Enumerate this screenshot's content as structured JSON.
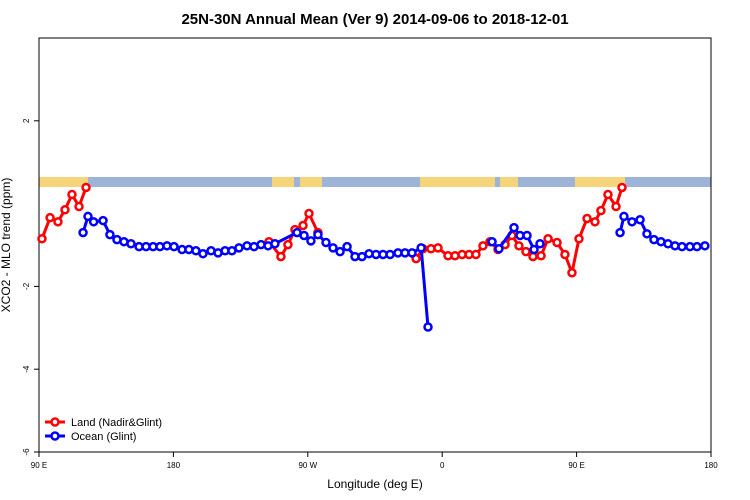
{
  "chart_data": {
    "type": "line",
    "title": "25N-30N Annual Mean (Ver 9)   2014-09-06 to 2018-12-01",
    "x_label": "Longitude (deg E)",
    "y_label": "XCO2 - MLO trend (ppm)",
    "xlim": [
      90,
      540
    ],
    "ylim": [
      -6,
      4
    ],
    "xticks": [
      {
        "value": 90,
        "label": "90 E"
      },
      180,
      {
        "value": 270,
        "label": "90 W"
      },
      {
        "value": 360,
        "label": "0"
      },
      {
        "value": 450,
        "label": "90 E"
      },
      {
        "value": 540,
        "label": "180"
      }
    ],
    "yticks": [
      -6,
      -4,
      -2,
      2
    ],
    "legend": "bottom-left",
    "series": [
      {
        "name": "Land (Nadir&Glint)",
        "color": "#ff0000",
        "x": [
          92,
          97.4,
          102.7,
          107.4,
          112.1,
          116.8,
          121.5,
          null,
          244,
          252,
          256.7,
          261.4,
          266.8,
          270.8,
          276.8,
          null,
          342.5,
          347.1,
          352.5,
          357.2,
          363.9,
          368.6,
          373.3,
          378,
          382.6,
          387.3,
          392,
          397.4,
          402.1,
          406.7,
          411.4,
          416.1,
          420.8,
          426.2,
          430.9,
          436.9,
          442.2,
          446.9,
          451.6,
          457,
          462.3,
          466.3,
          471,
          476.4,
          480.4
        ],
        "values": [
          -0.85,
          -0.34,
          -0.44,
          -0.15,
          0.22,
          -0.07,
          0.39,
          null,
          -0.92,
          -1.28,
          -0.99,
          -0.63,
          -0.53,
          -0.24,
          -0.7,
          null,
          -1.33,
          -1.09,
          -1.09,
          -1.07,
          -1.26,
          -1.26,
          -1.23,
          -1.23,
          -1.23,
          -1.02,
          -0.92,
          -1.11,
          -0.99,
          -0.77,
          -1.02,
          -1.16,
          -1.28,
          -1.26,
          -0.85,
          -0.94,
          -1.23,
          -1.67,
          -0.85,
          -0.36,
          -0.44,
          -0.17,
          0.22,
          -0.07,
          0.39
        ]
      },
      {
        "name": "Ocean (Glint)",
        "color": "#0000ff",
        "x": [
          119.5,
          122.8,
          126.6,
          132.9,
          137.5,
          142.2,
          146.9,
          151.6,
          157,
          161.7,
          166.4,
          171,
          175.7,
          180.4,
          185.8,
          190.4,
          195.1,
          199.8,
          205.2,
          209.9,
          214.6,
          219.2,
          223.9,
          229.3,
          234,
          238.7,
          243.4,
          248,
          262.8,
          267.5,
          272.1,
          276.8,
          282.2,
          286.9,
          291.6,
          296.3,
          301.6,
          306.3,
          311,
          315.7,
          320.4,
          325.1,
          330.4,
          335.1,
          339.8,
          345.9,
          350.5,
          null,
          393.4,
          398,
          408.1,
          412.1,
          416.8,
          421.5,
          425.5,
          null,
          479.1,
          481.7,
          487.1,
          492.5,
          497.1,
          501.8,
          506.5,
          511.2,
          515.9,
          520.6,
          525.9,
          530.6,
          535.9
        ],
        "values": [
          -0.7,
          -0.31,
          -0.44,
          -0.41,
          -0.75,
          -0.87,
          -0.92,
          -0.97,
          -1.04,
          -1.04,
          -1.04,
          -1.04,
          -1.02,
          -1.04,
          -1.11,
          -1.11,
          -1.14,
          -1.21,
          -1.14,
          -1.19,
          -1.14,
          -1.14,
          -1.07,
          -1.02,
          -1.04,
          -0.99,
          -1.02,
          -0.97,
          -0.7,
          -0.77,
          -0.9,
          -0.75,
          -0.94,
          -1.07,
          -1.16,
          -1.04,
          -1.28,
          -1.28,
          -1.21,
          -1.23,
          -1.23,
          -1.23,
          -1.19,
          -1.19,
          -1.19,
          -1.07,
          -2.98,
          null,
          -0.92,
          -1.09,
          -0.58,
          -0.77,
          -0.77,
          -1.11,
          -0.97,
          null,
          -0.7,
          -0.31,
          -0.44,
          -0.39,
          -0.73,
          -0.87,
          -0.92,
          -0.97,
          -1.02,
          -1.04,
          -1.04,
          -1.04,
          -1.02
        ]
      }
    ]
  }
}
